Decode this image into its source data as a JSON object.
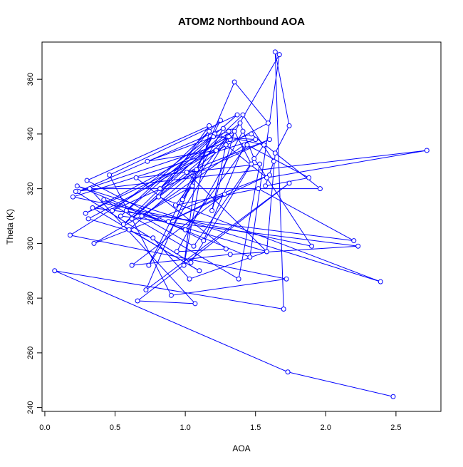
{
  "chart_data": {
    "type": "scatter",
    "title": "ATOM2 Northbound AOA",
    "xlabel": "AOA",
    "ylabel": "Theta (K)",
    "xlim": [
      -0.02,
      2.82
    ],
    "ylim": [
      238.6,
      373.6
    ],
    "xticks": [
      0.0,
      0.5,
      1.0,
      1.5,
      2.0,
      2.5
    ],
    "xtick_labels": [
      "0.0",
      "0.5",
      "1.0",
      "1.5",
      "2.0",
      "2.5"
    ],
    "yticks": [
      240,
      260,
      280,
      300,
      320,
      340,
      360
    ],
    "ytick_labels": [
      "240",
      "260",
      "280",
      "300",
      "320",
      "340",
      "360"
    ],
    "grid": false,
    "legend": "none",
    "connected": true,
    "color": "#0000ff",
    "series": [
      {
        "x": [
          2.48,
          1.73,
          0.07,
          1.7,
          1.64,
          1.74,
          1.64,
          1.58,
          1.03,
          0.77,
          0.31,
          1.59,
          1.35,
          0.72,
          1.74,
          0.66,
          1.07,
          0.32,
          1.96,
          1.47,
          0.24,
          1.27,
          0.98,
          1.05,
          0.35,
          1.6,
          0.88,
          1.28,
          0.62,
          1.32,
          2.23,
          0.54,
          1.37,
          0.46,
          0.9,
          1.72,
          0.18,
          1.3,
          1.56,
          1.06,
          0.69,
          1.42,
          1.13,
          0.3,
          1.17,
          0.81,
          2.39,
          0.23,
          1.46,
          1.67,
          1.32,
          1.21,
          0.48,
          1.6,
          1.01,
          1.58,
          0.58,
          1.25,
          0.74,
          1.33,
          0.93,
          1.52,
          2.2,
          0.34,
          1.1,
          0.6,
          1.08,
          0.99,
          1.17,
          0.82,
          1.39,
          1.49,
          1.9,
          0.2,
          1.5,
          1.2,
          0.56,
          1.29,
          1.58,
          2.72,
          0.22,
          1.04,
          1.47,
          1.35,
          1.19,
          1.31,
          0.73,
          1.22,
          0.29,
          1.31,
          0.62,
          1.41,
          1.63,
          1.57,
          1.88,
          1.44,
          1.0,
          0.42,
          1.38,
          1.53,
          0.65,
          1.29,
          0.94,
          1.41
        ],
        "y": [
          244,
          253,
          290,
          276,
          370,
          343,
          333,
          297,
          287,
          302,
          309,
          344,
          359,
          283,
          322,
          279,
          278,
          320,
          320,
          340,
          319,
          342,
          316,
          321,
          300,
          325,
          308,
          318,
          292,
          296,
          299,
          310,
          347,
          325,
          281,
          287,
          303,
          339,
          336,
          299,
          310,
          336,
          301,
          323,
          343,
          317,
          286,
          321,
          295,
          369,
          338,
          340,
          312,
          338,
          326,
          297,
          312,
          345,
          292,
          341,
          314,
          320,
          301,
          313,
          290,
          305,
          327,
          292,
          341,
          320,
          344,
          331,
          299,
          317,
          338,
          339,
          307,
          336,
          324,
          334,
          319,
          293,
          329,
          341,
          312,
          341,
          330,
          334,
          311,
          339,
          309,
          347,
          330,
          321,
          324,
          336,
          305,
          316,
          287,
          329,
          324,
          298,
          297,
          341
        ]
      }
    ]
  }
}
